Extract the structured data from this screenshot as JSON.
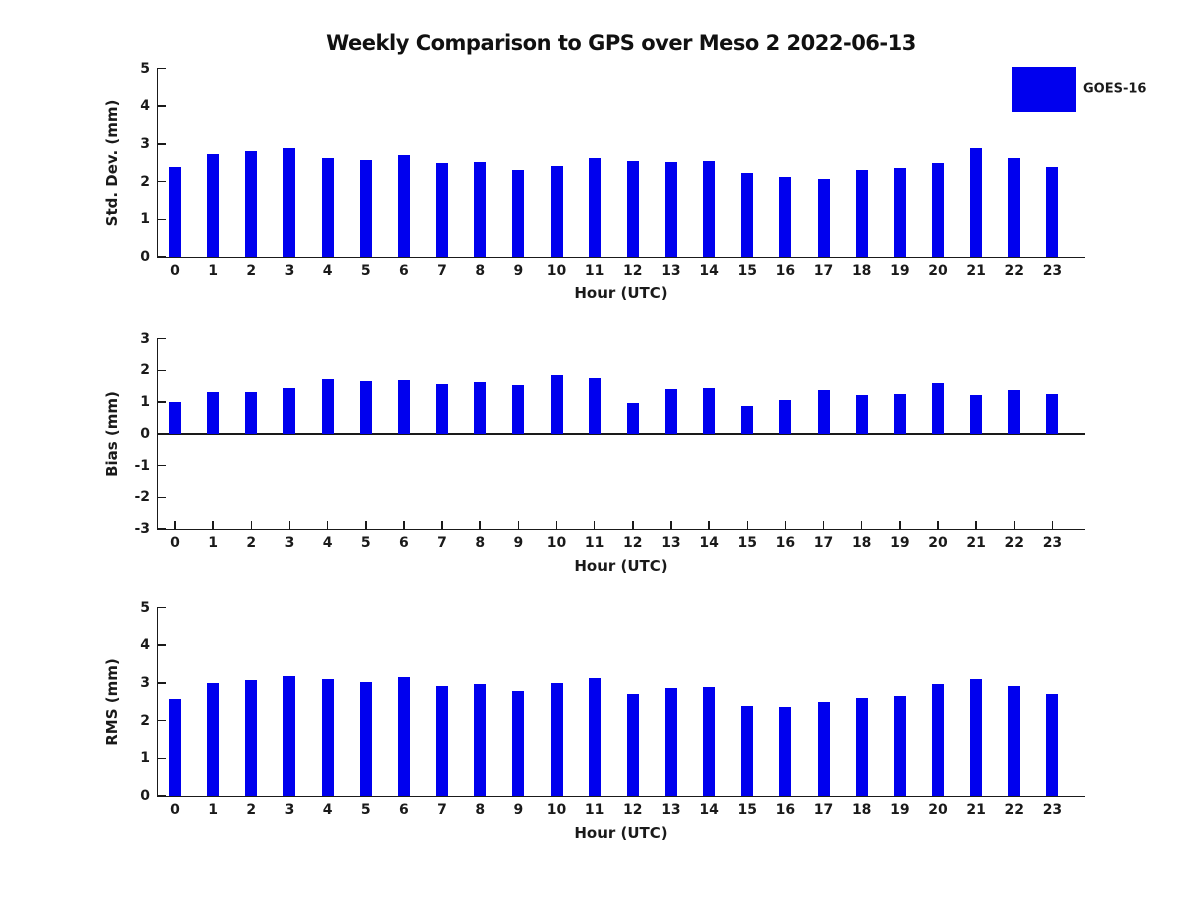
{
  "title": "Weekly Comparison to GPS over Meso 2 2022-06-13",
  "legend": {
    "label": "GOES-16",
    "position": "top-right",
    "color": "#0000EE"
  },
  "colors": {
    "bar": "#0000EE",
    "axis": "#1a1a1a",
    "text": "#1a1a1a",
    "background": "#ffffff"
  },
  "chart_data": [
    {
      "type": "bar",
      "ylabel": "Std. Dev. (mm)",
      "xlabel": "Hour (UTC)",
      "ylim": [
        0,
        5
      ],
      "yticks": [
        0,
        1,
        2,
        3,
        4,
        5
      ],
      "grid": false,
      "categories": [
        "0",
        "1",
        "2",
        "3",
        "4",
        "5",
        "6",
        "7",
        "8",
        "9",
        "10",
        "11",
        "12",
        "13",
        "14",
        "15",
        "16",
        "17",
        "18",
        "19",
        "20",
        "21",
        "22",
        "23"
      ],
      "series": [
        {
          "name": "GOES-16",
          "values": [
            2.38,
            2.72,
            2.8,
            2.88,
            2.62,
            2.57,
            2.7,
            2.5,
            2.52,
            2.31,
            2.42,
            2.62,
            2.54,
            2.52,
            2.55,
            2.22,
            2.12,
            2.07,
            2.32,
            2.36,
            2.5,
            2.88,
            2.62,
            2.4
          ]
        }
      ]
    },
    {
      "type": "bar",
      "ylabel": "Bias (mm)",
      "xlabel": "Hour (UTC)",
      "ylim": [
        -3,
        3
      ],
      "yticks": [
        -3,
        -2,
        -1,
        0,
        1,
        2,
        3
      ],
      "grid": false,
      "categories": [
        "0",
        "1",
        "2",
        "3",
        "4",
        "5",
        "6",
        "7",
        "8",
        "9",
        "10",
        "11",
        "12",
        "13",
        "14",
        "15",
        "16",
        "17",
        "18",
        "19",
        "20",
        "21",
        "22",
        "23"
      ],
      "series": [
        {
          "name": "GOES-16",
          "values": [
            1.0,
            1.3,
            1.33,
            1.45,
            1.72,
            1.67,
            1.7,
            1.58,
            1.63,
            1.55,
            1.85,
            1.75,
            0.97,
            1.41,
            1.44,
            0.87,
            1.06,
            1.38,
            1.22,
            1.25,
            1.6,
            1.23,
            1.38,
            1.26
          ]
        }
      ]
    },
    {
      "type": "bar",
      "ylabel": "RMS (mm)",
      "xlabel": "Hour (UTC)",
      "ylim": [
        0,
        5
      ],
      "yticks": [
        0,
        1,
        2,
        3,
        4,
        5
      ],
      "grid": false,
      "categories": [
        "0",
        "1",
        "2",
        "3",
        "4",
        "5",
        "6",
        "7",
        "8",
        "9",
        "10",
        "11",
        "12",
        "13",
        "14",
        "15",
        "16",
        "17",
        "18",
        "19",
        "20",
        "21",
        "22",
        "23"
      ],
      "series": [
        {
          "name": "GOES-16",
          "values": [
            2.57,
            3.01,
            3.08,
            3.19,
            3.11,
            3.03,
            3.16,
            2.93,
            2.98,
            2.78,
            3.0,
            3.13,
            2.7,
            2.87,
            2.9,
            2.38,
            2.35,
            2.49,
            2.61,
            2.64,
            2.97,
            3.1,
            2.92,
            2.7
          ]
        }
      ]
    }
  ]
}
